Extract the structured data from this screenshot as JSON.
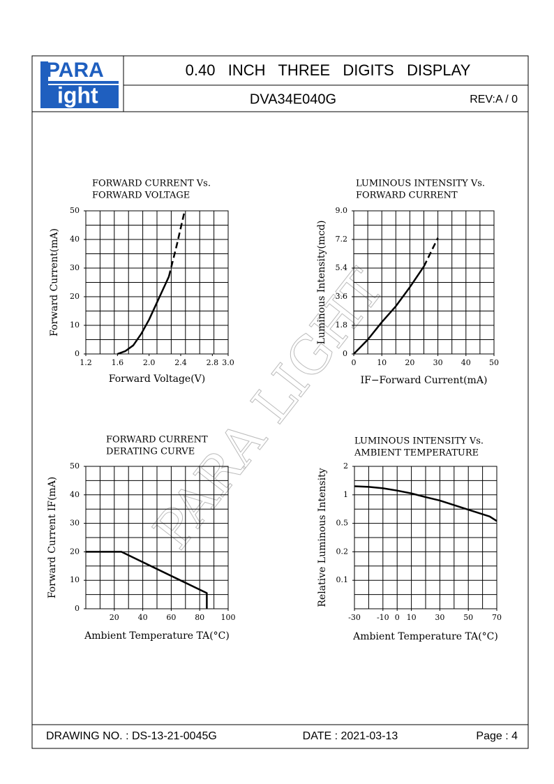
{
  "header": {
    "logo": [
      "PARA",
      "ight"
    ],
    "title": "0.40   INCH   THREE   DIGITS   DISPLAY",
    "part_number": "DVA34E040G",
    "revision": "REV:A / 0"
  },
  "watermark": "PARA LIGHT",
  "chart_data": [
    {
      "type": "line",
      "title": [
        "FORWARD CURRENT Vs.",
        "FORWARD VOLTAGE"
      ],
      "x_label": "Forward Voltage(V)",
      "y_label": "Forward Current(mA)",
      "xlim": [
        1.2,
        3.0
      ],
      "xticks": [
        1.2,
        1.6,
        {
          "value": 2,
          "label": "2.0"
        },
        2.4,
        2.8,
        {
          "value": 3,
          "label": "3.0"
        }
      ],
      "ylim": [
        0,
        50
      ],
      "yticks": [
        0,
        10,
        20,
        30,
        40,
        50
      ],
      "grid": true,
      "color": "#000000",
      "series": [
        {
          "style": "solid",
          "x": [
            1.6,
            1.7,
            1.8,
            1.9,
            2.0,
            2.1,
            2.2,
            2.25
          ],
          "values": [
            0,
            1,
            3,
            7,
            12,
            18,
            24,
            27
          ]
        },
        {
          "style": "dashed",
          "x": [
            2.25,
            2.35,
            2.45
          ],
          "values": [
            27,
            38,
            50
          ]
        }
      ]
    },
    {
      "type": "line",
      "title": [
        "LUMINOUS INTENSITY Vs.",
        "FORWARD CURRENT"
      ],
      "x_label": "IF−Forward Current(mA)",
      "y_label": "Luminous Intensity(mcd)",
      "xlim": [
        0,
        50
      ],
      "xticks": [
        0,
        10,
        20,
        30,
        40,
        50
      ],
      "ylim": [
        0,
        9
      ],
      "yticks": [
        0,
        1.8,
        3.6,
        5.4,
        7.2,
        {
          "value": 9,
          "label": "9.0"
        }
      ],
      "grid": true,
      "color": "#000000",
      "series": [
        {
          "style": "solid",
          "x": [
            0,
            5,
            10,
            15,
            20,
            25
          ],
          "values": [
            0,
            0.9,
            2,
            3,
            4.2,
            5.5
          ]
        },
        {
          "style": "dashed",
          "x": [
            25,
            30
          ],
          "values": [
            5.5,
            7.3
          ]
        }
      ]
    },
    {
      "type": "line",
      "title": [
        "FORWARD CURRENT",
        "DERATING CURVE"
      ],
      "x_label": "Ambient Temperature TA(°C)",
      "y_label": "Forward Current IF(mA)",
      "xlim": [
        0,
        100
      ],
      "xticks": [
        20,
        40,
        60,
        80,
        100
      ],
      "ylim": [
        0,
        50
      ],
      "yticks": [
        0,
        10,
        20,
        30,
        40,
        50
      ],
      "grid": true,
      "color": "#000000",
      "series": [
        {
          "style": "solid",
          "x": [
            0,
            25,
            85,
            85
          ],
          "values": [
            20,
            20,
            5.5,
            0
          ]
        }
      ]
    },
    {
      "type": "line",
      "title": [
        "LUMINOUS INTENSITY Vs.",
        "AMBIENT TEMPERATURE"
      ],
      "x_label": "Ambient Temperature TA(°C)",
      "y_label": "Relative Luminous Intensity",
      "xlim": [
        -30,
        70
      ],
      "xticks": [
        -30,
        -10,
        0,
        10,
        30,
        50,
        70
      ],
      "ylim": [
        0,
        2
      ],
      "yscale": "ticks-even",
      "yticks": [
        0.1,
        0.2,
        0.5,
        1,
        2
      ],
      "grid": true,
      "color": "#000000",
      "series": [
        {
          "style": "solid",
          "x": [
            -30,
            -20,
            -10,
            0,
            10,
            20,
            30,
            50,
            65,
            70
          ],
          "values": [
            1.3,
            1.28,
            1.23,
            1.15,
            1.05,
            0.96,
            0.9,
            0.74,
            0.62,
            0.54
          ]
        }
      ]
    }
  ],
  "footer": {
    "drawing_no": "DRAWING NO. : DS-13-21-0045G",
    "date": "DATE : 2021-03-13",
    "page": "Page : 4"
  }
}
